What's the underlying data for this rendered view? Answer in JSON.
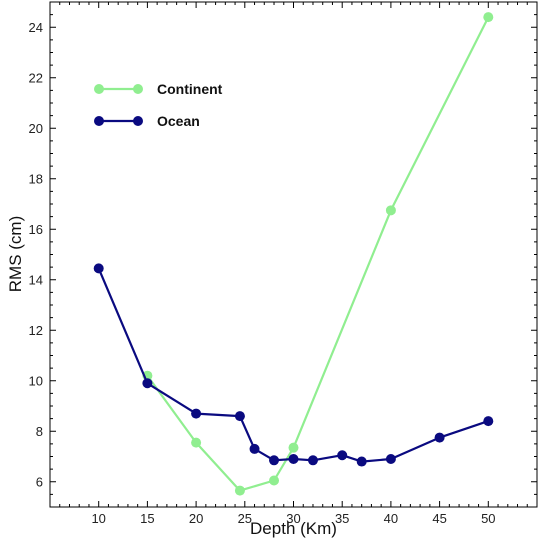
{
  "chart_data": {
    "type": "line",
    "xlabel": "Depth (Km)",
    "ylabel": "RMS (cm)",
    "xlim": [
      5,
      55
    ],
    "ylim": [
      5,
      25
    ],
    "x_ticks": [
      10,
      15,
      20,
      25,
      30,
      35,
      40,
      45,
      50
    ],
    "y_ticks": [
      6,
      8,
      10,
      12,
      14,
      16,
      18,
      20,
      22,
      24
    ],
    "grid": false,
    "legend_position": "top-left",
    "series": [
      {
        "name": "Continent",
        "color": "#90EE90",
        "x": [
          15,
          20,
          24.5,
          28,
          30,
          40,
          50
        ],
        "y": [
          10.2,
          7.55,
          5.65,
          6.05,
          7.35,
          16.75,
          24.4
        ]
      },
      {
        "name": "Ocean",
        "color": "#0A0A80",
        "x": [
          10,
          15,
          20,
          24.5,
          26,
          28,
          30,
          32,
          35,
          37,
          40,
          45,
          50
        ],
        "y": [
          14.45,
          9.9,
          8.7,
          8.6,
          7.3,
          6.85,
          6.9,
          6.85,
          7.05,
          6.8,
          6.9,
          7.75,
          8.4
        ]
      }
    ]
  }
}
